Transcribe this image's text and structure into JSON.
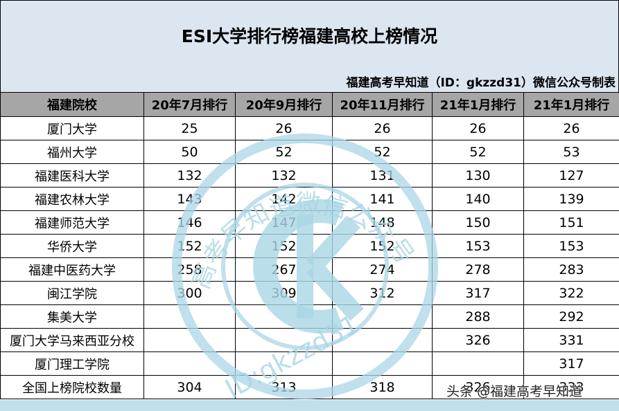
{
  "title": "ESI大学排行榜福建高校上榜情况",
  "subtitle": "福建高考早知道（ID：gkzzd31）微信公众号制表",
  "table": {
    "headers": [
      "福建院校",
      "20年7月排行",
      "20年9月排行",
      "20年11月排行",
      "21年1月排行",
      "21年1月排行"
    ],
    "rows": [
      [
        "厦门大学",
        "25",
        "26",
        "26",
        "26",
        "26"
      ],
      [
        "福州大学",
        "50",
        "52",
        "52",
        "52",
        "53"
      ],
      [
        "福建医科大学",
        "132",
        "132",
        "131",
        "130",
        "127"
      ],
      [
        "福建农林大学",
        "143",
        "142",
        "141",
        "140",
        "139"
      ],
      [
        "福建师范大学",
        "146",
        "147",
        "148",
        "150",
        "151"
      ],
      [
        "华侨大学",
        "152",
        "152",
        "152",
        "153",
        "153"
      ],
      [
        "福建中医药大学",
        "258",
        "267",
        "274",
        "278",
        "283"
      ],
      [
        "闽江学院",
        "300",
        "309",
        "312",
        "317",
        "322"
      ],
      [
        "集美大学",
        "",
        "",
        "",
        "288",
        "292"
      ],
      [
        "厦门大学马来西亚分校",
        "",
        "",
        "",
        "326",
        "331"
      ],
      [
        "厦门理工学院",
        "",
        "",
        "",
        "",
        "317"
      ],
      [
        "全国上榜院校数量",
        "304",
        "313",
        "318",
        "326",
        "333"
      ]
    ]
  },
  "watermark": {
    "arc_text": "高考早知道微信公众号",
    "id_text": "ID:gkzzd31",
    "color": "#a9d6e5"
  },
  "overlay_caption": "头条 @福建高考早知道"
}
